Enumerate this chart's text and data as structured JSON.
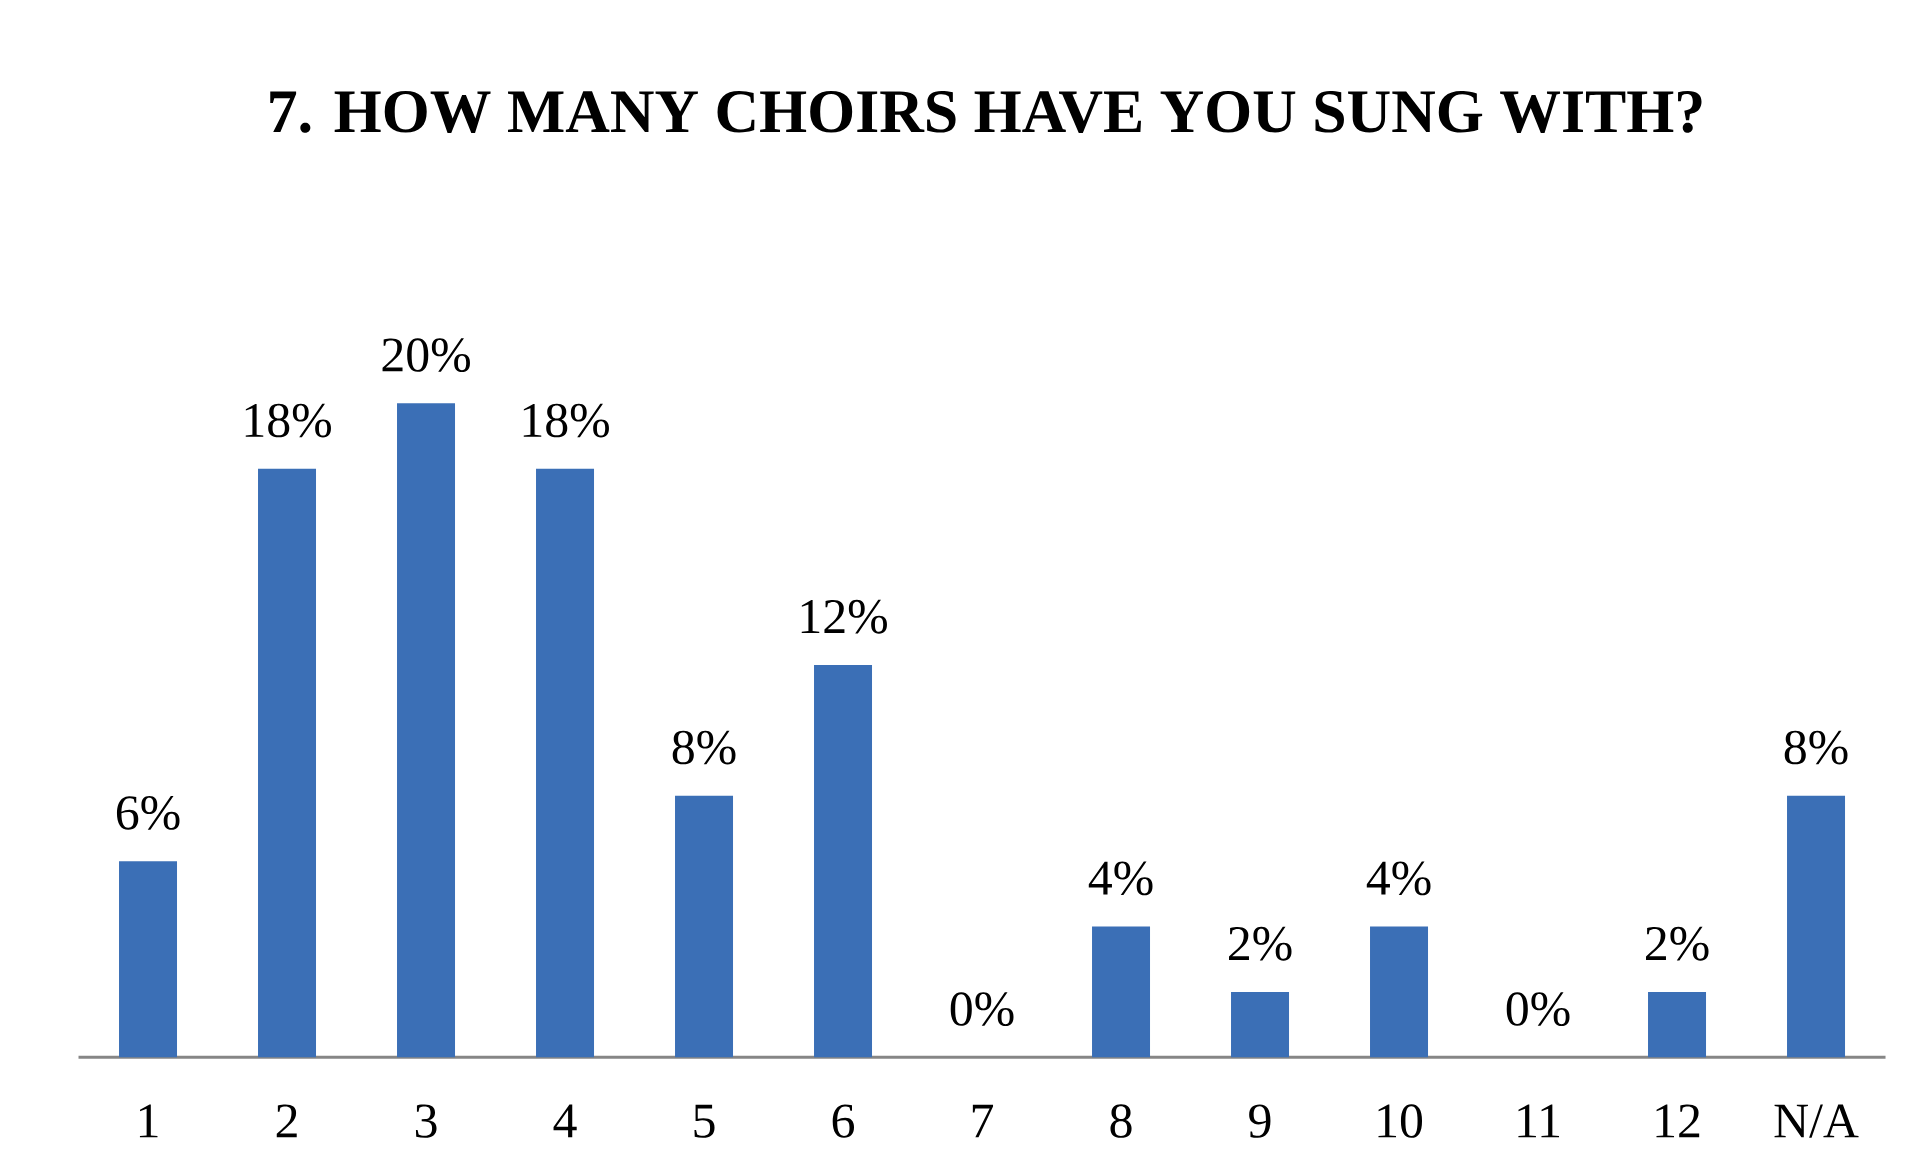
{
  "chart_data": {
    "type": "bar",
    "title": "7. HOW MANY CHOIRS HAVE YOU SUNG WITH?",
    "categories": [
      "1",
      "2",
      "3",
      "4",
      "5",
      "6",
      "7",
      "8",
      "9",
      "10",
      "11",
      "12",
      "N/A"
    ],
    "values": [
      6,
      18,
      20,
      18,
      8,
      12,
      0,
      4,
      2,
      4,
      0,
      2,
      8
    ],
    "value_labels": [
      "6%",
      "18%",
      "20%",
      "18%",
      "8%",
      "12%",
      "0%",
      "4%",
      "2%",
      "4%",
      "0%",
      "2%",
      "8%"
    ],
    "color": "#3b6fb6",
    "tick_labels": "x"
  }
}
